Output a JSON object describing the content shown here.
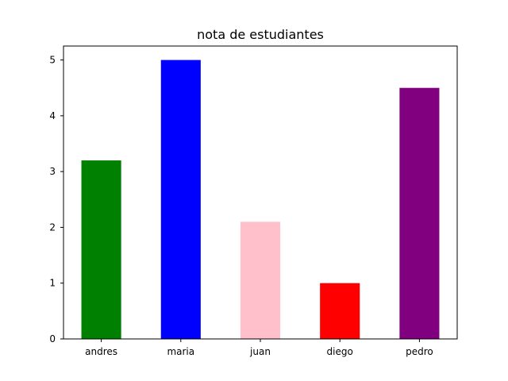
{
  "chart_data": {
    "type": "bar",
    "title": "nota de estudiantes",
    "xlabel": "",
    "ylabel": "",
    "categories": [
      "andres",
      "maria",
      "juan",
      "diego",
      "pedro"
    ],
    "values": [
      3.2,
      5.0,
      2.1,
      1.0,
      4.5
    ],
    "colors": [
      "#008000",
      "#0000ff",
      "#ffc0cb",
      "#ff0000",
      "#800080"
    ],
    "ylim": [
      0,
      5.25
    ],
    "yticks": [
      0,
      1,
      2,
      3,
      4,
      5
    ],
    "grid": false,
    "legend": "none"
  }
}
